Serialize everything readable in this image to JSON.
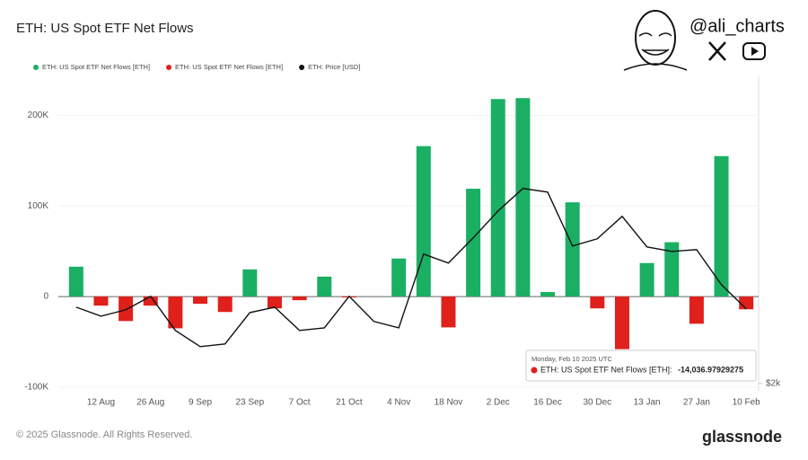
{
  "chart_data": {
    "type": "bar",
    "title": "ETH: US Spot ETF Net Flows",
    "handle": "@ali_charts",
    "categories": [
      null,
      "12 Aug",
      null,
      "26 Aug",
      null,
      "9 Sep",
      null,
      "23 Sep",
      null,
      "7 Oct",
      null,
      "21 Oct",
      null,
      "4 Nov",
      null,
      "18 Nov",
      null,
      "2 Dec",
      null,
      "16 Dec",
      null,
      "30 Dec",
      null,
      "13 Jan",
      null,
      "27 Jan",
      null,
      "10 Feb"
    ],
    "series": [
      {
        "name": "ETH: US Spot ETF Net Flows [ETH]",
        "color": "#1aaf62",
        "values": [
          33000,
          null,
          null,
          null,
          null,
          null,
          null,
          30000,
          null,
          null,
          22000,
          null,
          null,
          42000,
          166000,
          null,
          119000,
          218000,
          219000,
          5000,
          104000,
          null,
          null,
          37000,
          60000,
          null,
          155000,
          null
        ]
      },
      {
        "name": "ETH: US Spot ETF Net Flows [ETH]",
        "color": "#e0201b",
        "values": [
          null,
          -10000,
          -27000,
          -10000,
          -35000,
          -8000,
          -17000,
          null,
          -13000,
          -4000,
          null,
          -1000,
          null,
          null,
          null,
          -34000,
          null,
          null,
          null,
          null,
          null,
          -13000,
          -58000,
          null,
          null,
          -30000,
          null,
          -14036.97929275
        ]
      },
      {
        "name": "ETH: Price [USD]",
        "color": "#111111",
        "type": "line",
        "axis": "y2",
        "values": [
          2783,
          2691,
          2756,
          2894,
          2544,
          2378,
          2406,
          2728,
          2783,
          2544,
          2571,
          2894,
          2636,
          2571,
          3327,
          3235,
          3493,
          3770,
          4000,
          3963,
          3410,
          3484,
          3714,
          3401,
          3355,
          3373,
          3014,
          2765
        ]
      }
    ],
    "ylim": [
      -104000,
      243000
    ],
    "yticks": [
      {
        "value": -100000,
        "label": "-100K"
      },
      0,
      {
        "value": 100000,
        "label": "100K"
      },
      {
        "value": 200000,
        "label": "200K"
      }
    ],
    "y2lim": [
      1925,
      5150
    ],
    "y2ticks": [
      {
        "value": 2000,
        "label": "$2k"
      }
    ],
    "tooltip": {
      "date": "Monday, Feb 10 2025 UTC",
      "label": "ETH: US Spot ETF Net Flows [ETH]:",
      "value": "-14,036.97929275"
    },
    "footer": "© 2025 Glassnode. All Rights Reserved.",
    "brand": "glassnode"
  }
}
